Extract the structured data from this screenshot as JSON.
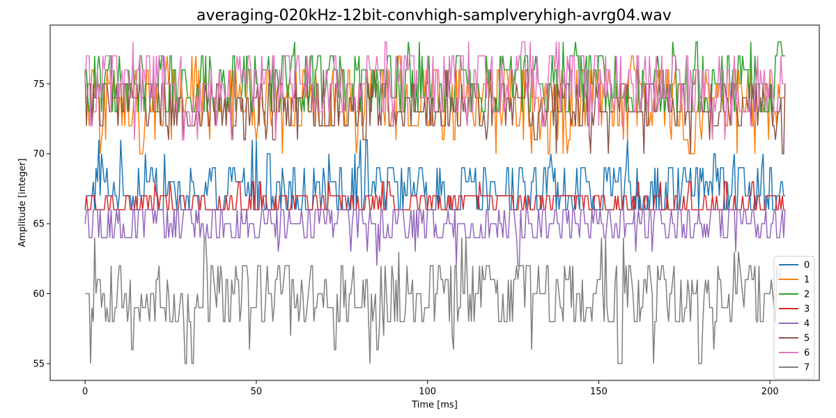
{
  "chart_data": {
    "type": "line",
    "title": "averaging-020kHz-12bit-convhigh-samplveryhigh-avrg04.wav",
    "xlabel": "Time [ms]",
    "ylabel": "Amplitude [integer]",
    "xlim": [
      -10.2,
      214.4
    ],
    "ylim": [
      53.8,
      79.2
    ],
    "xticks": [
      0,
      50,
      100,
      150,
      200
    ],
    "yticks": [
      55,
      60,
      65,
      70,
      75
    ],
    "grid": false,
    "legend": {
      "placement": "lower-right"
    },
    "x_range": [
      0,
      204.4
    ],
    "sample_period_ms": 0.4,
    "series": [
      {
        "name": "0",
        "color": "#1f77b4",
        "min": 66,
        "max": 71,
        "baseline": [
          66,
          69
        ]
      },
      {
        "name": "1",
        "color": "#ff7f0e",
        "min": 70,
        "max": 77,
        "baseline": [
          72,
          76
        ]
      },
      {
        "name": "2",
        "color": "#2ca02c",
        "min": 73,
        "max": 78,
        "baseline": [
          73,
          77
        ]
      },
      {
        "name": "3",
        "color": "#d62728",
        "min": 66,
        "max": 68,
        "baseline": [
          66,
          67
        ]
      },
      {
        "name": "4",
        "color": "#9467bd",
        "min": 62,
        "max": 66,
        "baseline": [
          64,
          66
        ]
      },
      {
        "name": "5",
        "color": "#8c564b",
        "min": 70,
        "max": 76,
        "baseline": [
          72,
          75
        ]
      },
      {
        "name": "6",
        "color": "#e377c2",
        "min": 70,
        "max": 78,
        "baseline": [
          73,
          77
        ]
      },
      {
        "name": "7",
        "color": "#7f7f7f",
        "min": 55,
        "max": 64,
        "baseline": [
          58,
          62
        ]
      }
    ]
  }
}
